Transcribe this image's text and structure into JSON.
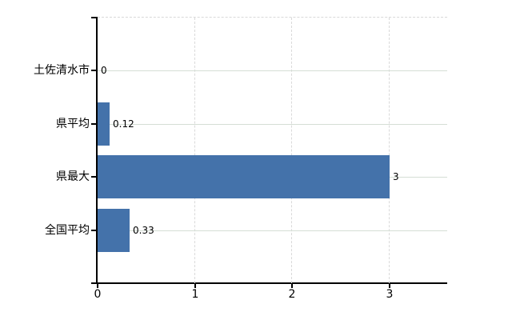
{
  "chart_data": {
    "type": "bar",
    "orientation": "horizontal",
    "title": "",
    "categories": [
      "土佐清水市",
      "県平均",
      "県最大",
      "全国平均"
    ],
    "values": [
      0,
      0.12,
      3,
      0.33
    ],
    "value_labels": [
      "0",
      "0.12",
      "3",
      "0.33"
    ],
    "x_ticks": [
      0,
      1,
      2,
      3
    ],
    "x_tick_labels": [
      "0",
      "1",
      "2",
      "3"
    ],
    "xlim": [
      0,
      3.59
    ],
    "grid": true,
    "legend": false,
    "colors": {
      "bar": "#4472aa",
      "axis": "#000000",
      "grid_horizontal": "#d5ded5",
      "grid_vertical": "#d9d9d9",
      "text": "#000000",
      "background": "#ffffff"
    }
  }
}
